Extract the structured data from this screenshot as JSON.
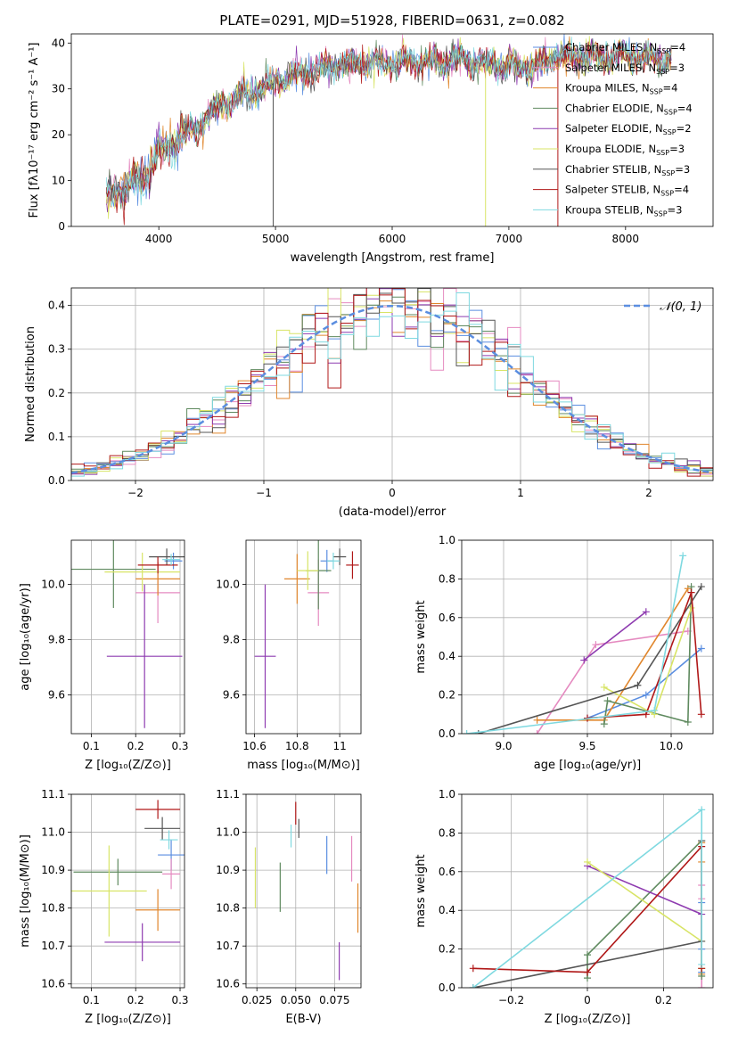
{
  "colors": {
    "chabrier_miles": "#5b8ee0",
    "salpeter_miles": "#e58ac0",
    "kroupa_miles": "#e0862c",
    "chabrier_elodie": "#5f8a5f",
    "salpeter_elodie": "#8e3bb0",
    "kroupa_elodie": "#d8e466",
    "chabrier_stelib": "#555555",
    "salpeter_stelib": "#b01818",
    "kroupa_stelib": "#7fd9e0",
    "normal": "#5b8ee0"
  },
  "chart_data": [
    {
      "id": "spectrum",
      "type": "line",
      "title": "PLATE=0291, MJD=51928, FIBERID=0631, z=0.082",
      "xlabel": "wavelength [Angstrom, rest frame]",
      "ylabel": "Flux [fλ10⁻¹⁷ erg cm⁻² s⁻¹ A⁻¹]",
      "xlim": [
        3250,
        8750
      ],
      "ylim": [
        0,
        42
      ],
      "xticks": [
        4000,
        5000,
        6000,
        7000,
        8000
      ],
      "yticks": [
        0,
        10,
        20,
        30,
        40
      ],
      "legend_position": "right",
      "legend": [
        "Chabrier MILES, N_SSP=4",
        "Salpeter MILES, N_SSP=3",
        "Kroupa MILES, N_SSP=4",
        "Chabrier ELODIE, N_SSP=4",
        "Salpeter ELODIE, N_SSP=2",
        "Kroupa ELODIE, N_SSP=3",
        "Chabrier STELIB, N_SSP=3",
        "Salpeter STELIB, N_SSP=4",
        "Kroupa STELIB, N_SSP=3"
      ],
      "legend_parts": [
        {
          "label": "Chabrier MILES, N",
          "n": "4"
        },
        {
          "label": "Salpeter MILES, N",
          "n": "3"
        },
        {
          "label": "Kroupa MILES, N",
          "n": "4"
        },
        {
          "label": "Chabrier ELODIE, N",
          "n": "4"
        },
        {
          "label": "Salpeter ELODIE, N",
          "n": "2"
        },
        {
          "label": "Kroupa ELODIE, N",
          "n": "3"
        },
        {
          "label": "Chabrier STELIB, N",
          "n": "3"
        },
        {
          "label": "Salpeter STELIB, N",
          "n": "4"
        },
        {
          "label": "Kroupa STELIB, N",
          "n": "3"
        }
      ],
      "series_color_keys": [
        "chabrier_miles",
        "salpeter_miles",
        "kroupa_miles",
        "chabrier_elodie",
        "salpeter_elodie",
        "kroupa_elodie",
        "chabrier_stelib",
        "salpeter_stelib",
        "kroupa_stelib"
      ],
      "envelope": {
        "x": [
          3550,
          3700,
          3900,
          4000,
          4100,
          4200,
          4350,
          4500,
          4700,
          4900,
          5000,
          5200,
          5400,
          5600,
          5800,
          6000,
          6200,
          6400,
          6600,
          6800,
          7000,
          7200,
          7400,
          7600,
          7800,
          8000,
          8200,
          8400
        ],
        "y": [
          7.0,
          8.5,
          11.5,
          16.0,
          18.0,
          20.0,
          22.0,
          26.0,
          28.5,
          30.0,
          31.5,
          33.0,
          34.5,
          35.5,
          36.0,
          35.5,
          36.0,
          36.0,
          36.5,
          35.5,
          35.0,
          34.5,
          37.0,
          37.0,
          37.0,
          37.5,
          36.5,
          36.5
        ]
      },
      "spikes": [
        {
          "x": 4980,
          "y": 0,
          "series": 6
        },
        {
          "x": 6800,
          "y": 0,
          "series": 5
        },
        {
          "x": 7420,
          "y": 0,
          "series": 7
        }
      ]
    },
    {
      "id": "residuals",
      "type": "histogram",
      "xlabel": "(data-model)/error",
      "ylabel": "Normed distribution",
      "xlim": [
        -2.5,
        2.5
      ],
      "ylim": [
        0,
        0.44
      ],
      "xticks": [
        -2,
        -1,
        0,
        1,
        2
      ],
      "yticks": [
        0.0,
        0.1,
        0.2,
        0.3,
        0.4
      ],
      "legend_position": "top-right",
      "legend": [
        "𝒩(0, 1)"
      ],
      "bin_width": 0.1
    },
    {
      "id": "age_vs_Z",
      "type": "errorbar",
      "xlabel": "Z [log₁₀(Z/Z⊙)]",
      "ylabel": "age  [log₁₀(age/yr)]",
      "xlim": [
        0.055,
        0.31
      ],
      "ylim": [
        9.46,
        10.16
      ],
      "xticks": [
        0.1,
        0.2,
        0.3
      ],
      "yticks": [
        9.6,
        9.8,
        10.0
      ],
      "points": [
        {
          "s": 0,
          "x": 0.285,
          "y": 10.085,
          "xerr": 0.02,
          "yerr": 0.03
        },
        {
          "s": 1,
          "x": 0.25,
          "y": 9.97,
          "xerr": 0.05,
          "yerr": 0.11
        },
        {
          "s": 2,
          "x": 0.25,
          "y": 10.02,
          "xerr": 0.05,
          "yerr": 0.06
        },
        {
          "s": 3,
          "x": 0.15,
          "y": 10.055,
          "xerr": 0.095,
          "yerr": 0.14
        },
        {
          "s": 4,
          "x": 0.22,
          "y": 9.74,
          "xerr": 0.085,
          "yerr": 0.26
        },
        {
          "s": 5,
          "x": 0.215,
          "y": 10.045,
          "xerr": 0.085,
          "yerr": 0.07
        },
        {
          "s": 6,
          "x": 0.27,
          "y": 10.1,
          "xerr": 0.04,
          "yerr": 0.03
        },
        {
          "s": 7,
          "x": 0.25,
          "y": 10.07,
          "xerr": 0.045,
          "yerr": 0.03
        },
        {
          "s": 8,
          "x": 0.28,
          "y": 10.09,
          "xerr": 0.02,
          "yerr": 0.02
        }
      ]
    },
    {
      "id": "age_vs_mass",
      "type": "errorbar",
      "xlabel": "mass [log₁₀(M/M⊙)]",
      "ylabel": "",
      "xlim": [
        10.56,
        11.1
      ],
      "ylim": [
        9.46,
        10.16
      ],
      "xticks": [
        10.6,
        10.8,
        11.0
      ],
      "yticks": [
        9.6,
        9.8,
        10.0
      ],
      "points": [
        {
          "s": 0,
          "x": 10.94,
          "y": 10.085,
          "xerr": 0.03,
          "yerr": 0.04
        },
        {
          "s": 1,
          "x": 10.9,
          "y": 9.97,
          "xerr": 0.05,
          "yerr": 0.12
        },
        {
          "s": 2,
          "x": 10.8,
          "y": 10.02,
          "xerr": 0.06,
          "yerr": 0.09
        },
        {
          "s": 3,
          "x": 10.9,
          "y": 10.05,
          "xerr": 0.06,
          "yerr": 0.14
        },
        {
          "s": 4,
          "x": 10.65,
          "y": 9.74,
          "xerr": 0.05,
          "yerr": 0.26
        },
        {
          "s": 5,
          "x": 10.85,
          "y": 10.05,
          "xerr": 0.05,
          "yerr": 0.07
        },
        {
          "s": 6,
          "x": 11.0,
          "y": 10.1,
          "xerr": 0.03,
          "yerr": 0.03
        },
        {
          "s": 7,
          "x": 11.06,
          "y": 10.07,
          "xerr": 0.03,
          "yerr": 0.05
        },
        {
          "s": 8,
          "x": 10.97,
          "y": 10.085,
          "xerr": 0.03,
          "yerr": 0.03
        }
      ]
    },
    {
      "id": "weight_vs_age",
      "type": "line",
      "xlabel": "age  [log₁₀(age/yr)]",
      "ylabel": "mass weight",
      "xlim": [
        8.75,
        10.25
      ],
      "ylim": [
        0.0,
        1.0
      ],
      "xticks": [
        9.0,
        9.5,
        10.0
      ],
      "yticks": [
        0.0,
        0.2,
        0.4,
        0.6,
        0.8,
        1.0
      ],
      "series": [
        {
          "s": 0,
          "x": [
            9.5,
            9.85,
            10.18
          ],
          "y": [
            0.08,
            0.2,
            0.44
          ]
        },
        {
          "s": 1,
          "x": [
            9.2,
            9.55,
            10.1
          ],
          "y": [
            0.0,
            0.46,
            0.53
          ]
        },
        {
          "s": 2,
          "x": [
            9.2,
            9.6,
            10.1
          ],
          "y": [
            0.07,
            0.07,
            0.75
          ]
        },
        {
          "s": 3,
          "x": [
            9.6,
            9.62,
            10.1,
            10.12
          ],
          "y": [
            0.05,
            0.17,
            0.06,
            0.76
          ]
        },
        {
          "s": 4,
          "x": [
            9.48,
            9.85
          ],
          "y": [
            0.38,
            0.63
          ]
        },
        {
          "s": 5,
          "x": [
            9.6,
            9.9,
            10.12
          ],
          "y": [
            0.24,
            0.1,
            0.65
          ]
        },
        {
          "s": 6,
          "x": [
            8.85,
            9.8,
            10.18
          ],
          "y": [
            0.0,
            0.25,
            0.76
          ]
        },
        {
          "s": 7,
          "x": [
            9.5,
            9.85,
            10.12,
            10.18
          ],
          "y": [
            0.08,
            0.1,
            0.73,
            0.1
          ]
        },
        {
          "s": 8,
          "x": [
            8.78,
            9.9,
            10.07
          ],
          "y": [
            0.0,
            0.12,
            0.92
          ]
        }
      ]
    },
    {
      "id": "mass_vs_Z",
      "type": "errorbar",
      "xlabel": "Z [log₁₀(Z/Z⊙)]",
      "ylabel": "mass [log₁₀(M/M⊙)]",
      "xlim": [
        0.055,
        0.31
      ],
      "ylim": [
        10.59,
        11.1
      ],
      "xticks": [
        0.1,
        0.2,
        0.3
      ],
      "yticks": [
        10.6,
        10.7,
        10.8,
        10.9,
        11.0,
        11.1
      ],
      "points": [
        {
          "s": 0,
          "x": 0.28,
          "y": 10.94,
          "xerr": 0.03,
          "yerr": 0.04
        },
        {
          "s": 1,
          "x": 0.28,
          "y": 10.89,
          "xerr": 0.02,
          "yerr": 0.04
        },
        {
          "s": 2,
          "x": 0.25,
          "y": 10.795,
          "xerr": 0.05,
          "yerr": 0.055
        },
        {
          "s": 3,
          "x": 0.16,
          "y": 10.895,
          "xerr": 0.1,
          "yerr": 0.035
        },
        {
          "s": 4,
          "x": 0.215,
          "y": 10.71,
          "xerr": 0.085,
          "yerr": 0.05
        },
        {
          "s": 5,
          "x": 0.14,
          "y": 10.845,
          "xerr": 0.085,
          "yerr": 0.12
        },
        {
          "s": 6,
          "x": 0.26,
          "y": 11.01,
          "xerr": 0.04,
          "yerr": 0.03
        },
        {
          "s": 7,
          "x": 0.25,
          "y": 11.06,
          "xerr": 0.05,
          "yerr": 0.025
        },
        {
          "s": 8,
          "x": 0.275,
          "y": 10.98,
          "xerr": 0.02,
          "yerr": 0.025
        }
      ]
    },
    {
      "id": "mass_vs_ebv",
      "type": "errorbar",
      "xlabel": "E(B-V)",
      "ylabel": "",
      "xlim": [
        0.018,
        0.092
      ],
      "ylim": [
        10.59,
        11.1
      ],
      "xticks": [
        0.025,
        0.05,
        0.075
      ],
      "yticks": [
        10.6,
        10.7,
        10.8,
        10.9,
        11.0,
        11.1
      ],
      "points": [
        {
          "s": 0,
          "x": 0.07,
          "y": 10.94,
          "xerr": 0,
          "yerr": 0.05
        },
        {
          "s": 1,
          "x": 0.086,
          "y": 10.93,
          "xerr": 0,
          "yerr": 0.06
        },
        {
          "s": 2,
          "x": 0.09,
          "y": 10.8,
          "xerr": 0,
          "yerr": 0.065
        },
        {
          "s": 3,
          "x": 0.04,
          "y": 10.855,
          "xerr": 0,
          "yerr": 0.065
        },
        {
          "s": 4,
          "x": 0.078,
          "y": 10.66,
          "xerr": 0,
          "yerr": 0.05
        },
        {
          "s": 5,
          "x": 0.024,
          "y": 10.88,
          "xerr": 0,
          "yerr": 0.08
        },
        {
          "s": 6,
          "x": 0.052,
          "y": 11.01,
          "xerr": 0,
          "yerr": 0.025
        },
        {
          "s": 7,
          "x": 0.05,
          "y": 11.05,
          "xerr": 0,
          "yerr": 0.03
        },
        {
          "s": 8,
          "x": 0.047,
          "y": 10.99,
          "xerr": 0,
          "yerr": 0.03
        }
      ]
    },
    {
      "id": "weight_vs_Z",
      "type": "line",
      "xlabel": "Z [log₁₀(Z/Z⊙)]",
      "ylabel": "mass weight",
      "xlim": [
        -0.33,
        0.33
      ],
      "ylim": [
        0.0,
        1.0
      ],
      "xticks": [
        -0.2,
        0.0,
        0.2
      ],
      "yticks": [
        0.0,
        0.2,
        0.4,
        0.6,
        0.8,
        1.0
      ],
      "series": [
        {
          "s": 0,
          "x": [
            0.3,
            0.3,
            0.3
          ],
          "y": [
            0.44,
            0.2,
            0.08
          ]
        },
        {
          "s": 1,
          "x": [
            0.3,
            0.3,
            0.3
          ],
          "y": [
            0.53,
            0.46,
            0.0
          ]
        },
        {
          "s": 2,
          "x": [
            0.3,
            0.3,
            0.3
          ],
          "y": [
            0.75,
            0.65,
            0.07
          ]
        },
        {
          "s": 3,
          "x": [
            0.0,
            0.0,
            0.3,
            0.3
          ],
          "y": [
            0.05,
            0.17,
            0.76,
            0.06
          ]
        },
        {
          "s": 4,
          "x": [
            0.0,
            0.3
          ],
          "y": [
            0.63,
            0.38
          ]
        },
        {
          "s": 5,
          "x": [
            0.0,
            0.3,
            0.3
          ],
          "y": [
            0.65,
            0.24,
            0.1
          ]
        },
        {
          "s": 6,
          "x": [
            -0.3,
            0.3,
            0.3
          ],
          "y": [
            0.0,
            0.24,
            0.76
          ]
        },
        {
          "s": 7,
          "x": [
            -0.3,
            0.0,
            0.3,
            0.3
          ],
          "y": [
            0.1,
            0.08,
            0.73,
            0.1
          ]
        },
        {
          "s": 8,
          "x": [
            -0.3,
            0.3,
            0.3
          ],
          "y": [
            0.0,
            0.92,
            0.12
          ]
        }
      ]
    }
  ]
}
